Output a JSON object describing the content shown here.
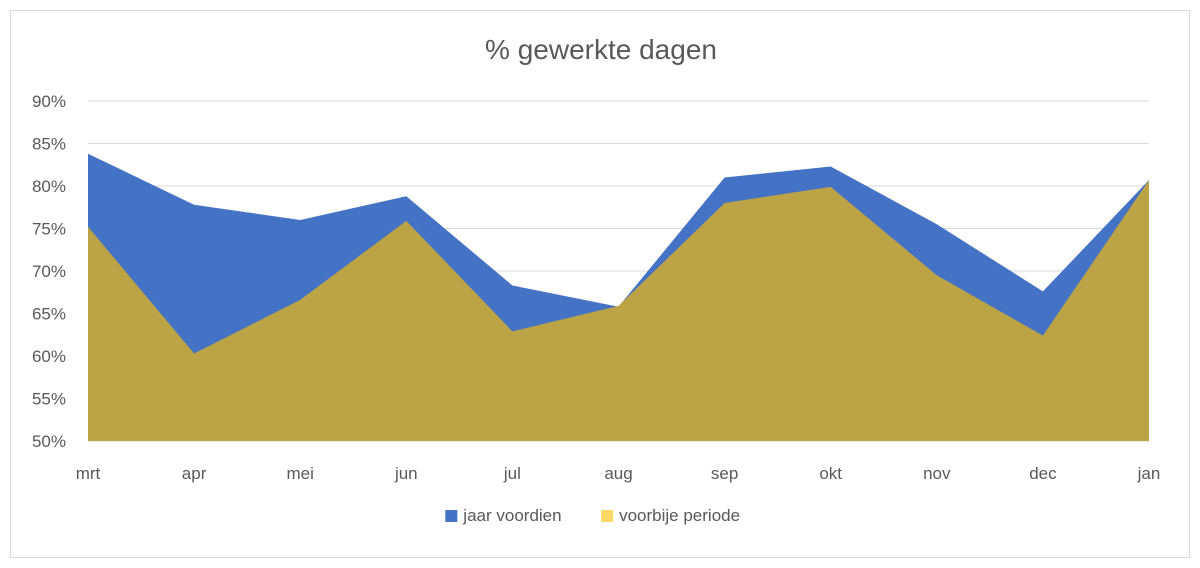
{
  "chart_data": {
    "type": "area",
    "title": "% gewerkte dagen",
    "categories": [
      "mrt",
      "apr",
      "mei",
      "jun",
      "jul",
      "aug",
      "sep",
      "okt",
      "nov",
      "dec",
      "jan"
    ],
    "series": [
      {
        "name": "jaar voordien",
        "color": "#4472C4",
        "values": [
          0.838,
          0.778,
          0.76,
          0.788,
          0.683,
          0.658,
          0.81,
          0.823,
          0.755,
          0.676,
          0.807
        ]
      },
      {
        "name": "voorbije periode",
        "color": "#BBA346",
        "values": [
          0.752,
          0.603,
          0.666,
          0.759,
          0.629,
          0.659,
          0.78,
          0.799,
          0.695,
          0.624,
          0.807
        ]
      }
    ],
    "ylim": [
      0.5,
      0.9
    ],
    "yticks": [
      "50%",
      "55%",
      "60%",
      "65%",
      "70%",
      "75%",
      "80%",
      "85%",
      "90%"
    ],
    "grid": true,
    "legend_position": "bottom",
    "legend_colors": [
      "#4472C4",
      "#FFD966"
    ]
  }
}
